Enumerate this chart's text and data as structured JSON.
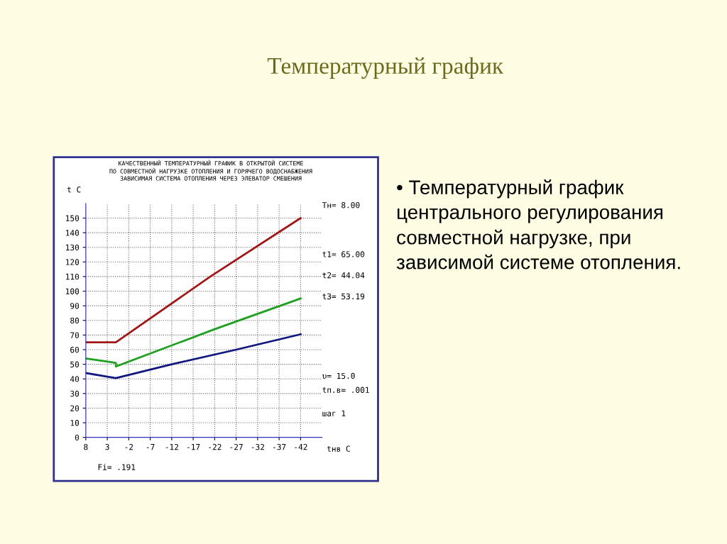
{
  "chart_data": {
    "type": "line",
    "title": "Температурный график",
    "subtitle": "КАЧЕСТВЕННЫЙ ТЕМПЕРАТУРНЫЙ ГРАФИК В ОТКРЫТОЙ СИСТЕМЕ\nПО СОВМЕСТНОЙ НАГРУЗКЕ ОТОПЛЕНИЯ И ГОРЯЧЕГО ВОДОСНАБЖЕНИЯ\nЗАВИСИМАЯ СИСТЕМА ОТОПЛЕНИЯ ЧЕРЕЗ ЭЛЕВАТОР СМЕШЕНИЯ",
    "ylabel": "t C",
    "xlabel": "tнв C",
    "series": [
      {
        "color": "#a01818",
        "x": [
          8,
          1,
          -21,
          -42
        ],
        "values": [
          65,
          65,
          110,
          150
        ]
      },
      {
        "color": "#20a020",
        "x": [
          8,
          1,
          1,
          -22,
          -42
        ],
        "values": [
          54,
          51,
          48.5,
          74,
          95
        ]
      },
      {
        "color": "#101880",
        "x": [
          8,
          1,
          -12,
          -27,
          -42
        ],
        "values": [
          44,
          40.5,
          50,
          60,
          70.5
        ]
      }
    ],
    "xlim": [
      8,
      -47
    ],
    "xticks": [
      8,
      3,
      -2,
      -7,
      -12,
      -17,
      -22,
      -27,
      -32,
      -37,
      -42
    ],
    "ylim": [
      0,
      160
    ],
    "yticks": [
      0,
      10,
      20,
      30,
      40,
      50,
      60,
      70,
      80,
      90,
      100,
      110,
      120,
      130,
      140,
      150
    ],
    "grid": true,
    "line_style": "solid",
    "marker": "none",
    "annotations": [
      "Tн= 8.00",
      "t1= 65.00",
      "t2= 44.04",
      "t3= 53.19",
      "υ= 15.0",
      "tп.в= .001",
      "шаг 1",
      "Fi= .191",
      "• Температурный график центрального регулирования совместной нагрузке, при зависимой системе отопления."
    ]
  }
}
